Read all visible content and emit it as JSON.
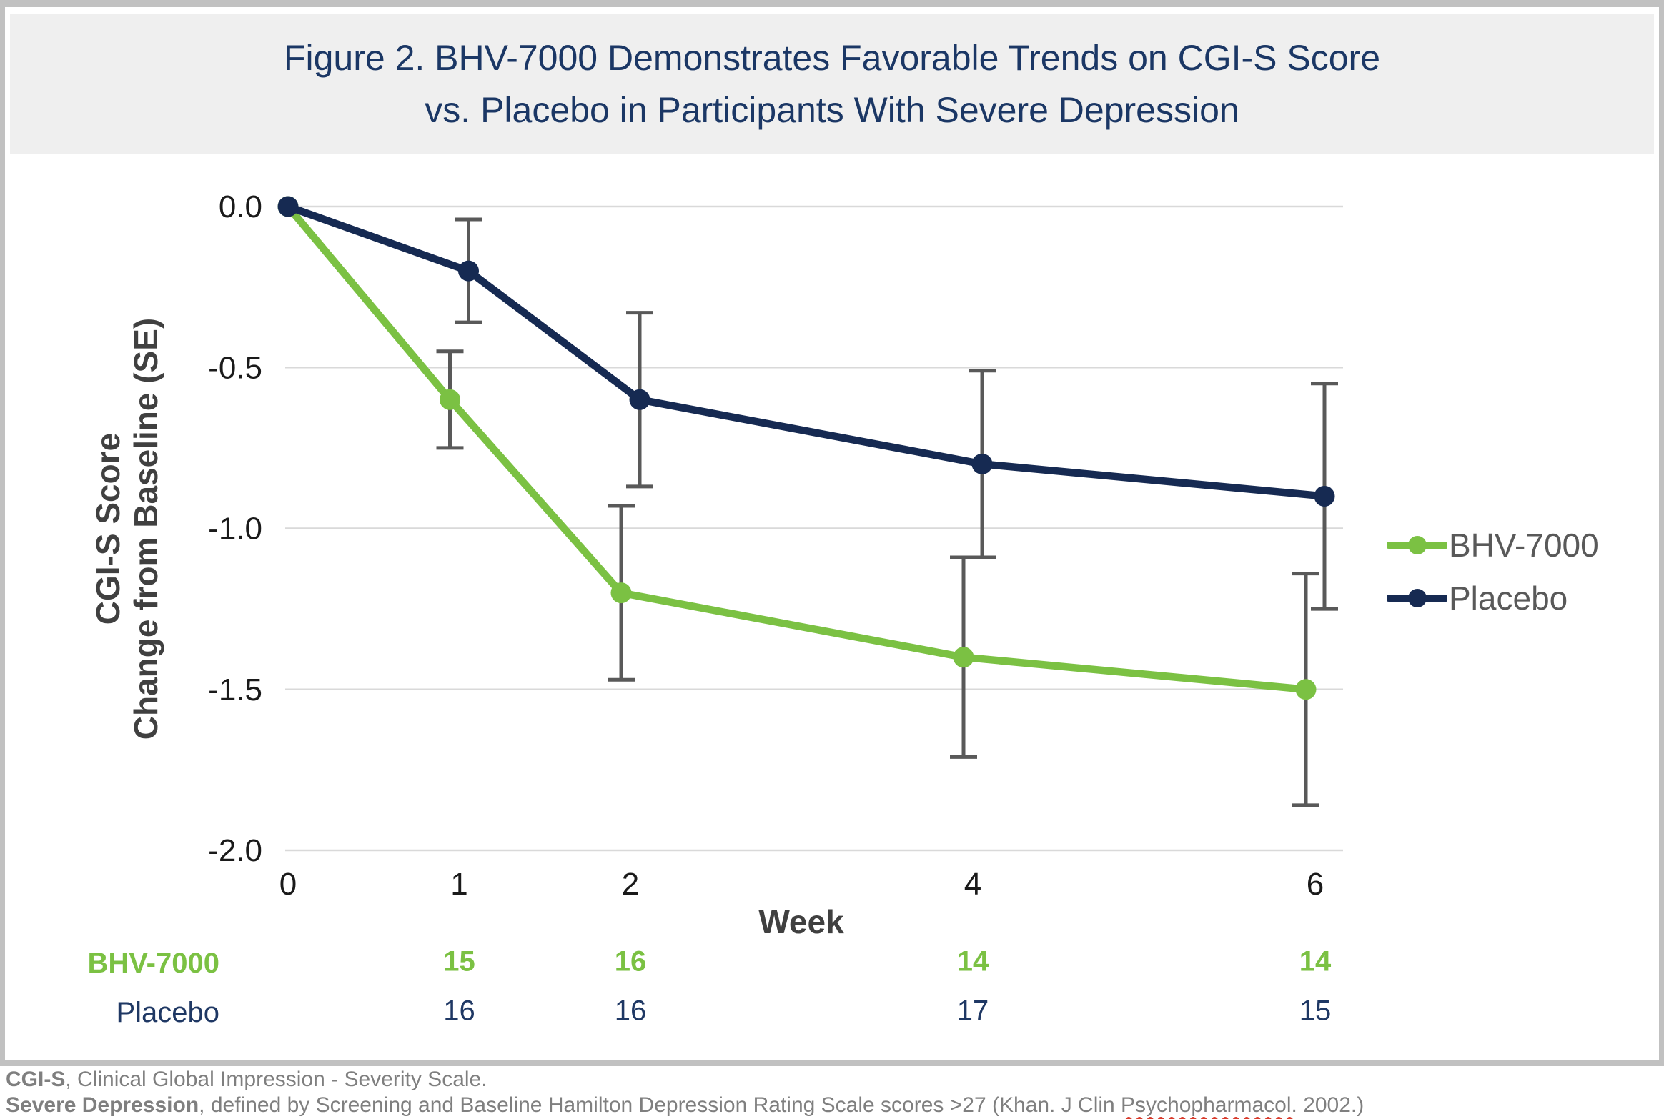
{
  "figure": {
    "title_lines": [
      "Figure 2. BHV-7000 Demonstrates Favorable Trends on CGI-S Score",
      "vs. Placebo in Participants With Severe Depression"
    ]
  },
  "chart_data": {
    "type": "line",
    "title": "Figure 2. BHV-7000 Demonstrates Favorable Trends on CGI-S Score vs. Placebo in Participants With Severe Depression",
    "x": [
      0,
      1,
      2,
      4,
      6
    ],
    "x_axis": {
      "title": "Week",
      "tick_labels": [
        "0",
        "1",
        "2",
        "4",
        "6"
      ]
    },
    "y_axis": {
      "title_lines": [
        "CGI-S Score",
        "Change from Baseline (SE)"
      ],
      "ticks": [
        0,
        -0.5,
        -1.0,
        -1.5,
        -2.0
      ],
      "tick_labels": [
        "0.0",
        "-0.5",
        "-1.0",
        "-1.5",
        "-2.0"
      ],
      "range": [
        0,
        -2.0
      ],
      "grid": true
    },
    "legend": {
      "position": "right",
      "entries": [
        "BHV-7000",
        "Placebo"
      ]
    },
    "series": [
      {
        "name": "BHV-7000",
        "color": "#7BC143",
        "values": [
          0,
          -0.6,
          -1.2,
          -1.4,
          -1.5
        ],
        "se": [
          0,
          0.15,
          0.27,
          0.31,
          0.36
        ]
      },
      {
        "name": "Placebo",
        "color": "#162A52",
        "values": [
          0,
          -0.2,
          -0.6,
          -0.8,
          -0.9
        ],
        "se": [
          0,
          0.16,
          0.27,
          0.29,
          0.35
        ]
      }
    ],
    "error_bar_note": "SE",
    "n_table": {
      "weeks": [
        1,
        2,
        4,
        6
      ],
      "rows": [
        {
          "label": "BHV-7000",
          "color": "#7BC143",
          "bold": true,
          "values": [
            "15",
            "16",
            "14",
            "14"
          ]
        },
        {
          "label": "Placebo",
          "color": "#1F3864",
          "bold": false,
          "values": [
            "16",
            "16",
            "17",
            "15"
          ]
        }
      ]
    }
  },
  "footnotes": [
    {
      "bold": "CGI-S",
      "text": ", Clinical Global Impression - Severity Scale."
    },
    {
      "bold": "Severe Depression",
      "text_before": ", defined by Screening and Baseline Hamilton Depression Rating Scale scores >27 (Khan. J Clin ",
      "misspelled": "Psychopharmacol.",
      "text_after": " 2002.)"
    }
  ],
  "colors": {
    "title_navy": "#1B3765",
    "series_green": "#7BC143",
    "series_navy": "#162A52",
    "table_navy": "#1F3864",
    "gridline": "#D9D9D9",
    "error_bar": "#595959",
    "tick_label": "#1A1A1A",
    "axis_title_gray": "#404040",
    "legend_text": "#595959",
    "footnote_gray": "#7F7F7F",
    "title_band_bg": "#EFEFEF",
    "card_border": "#C1C1C1"
  }
}
